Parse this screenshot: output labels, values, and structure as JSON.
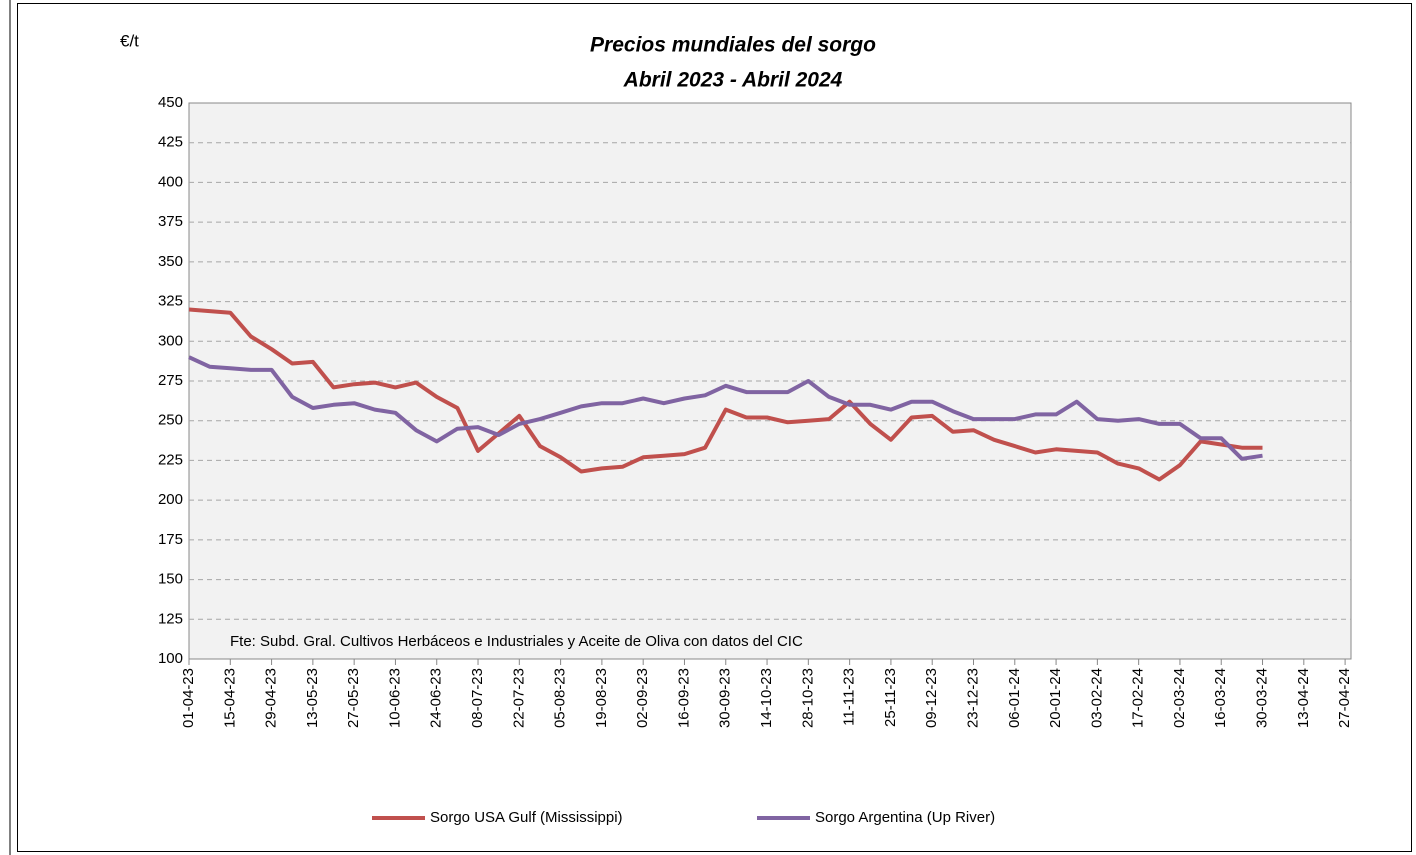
{
  "chart_data": {
    "type": "line",
    "title": "Precios mundiales del sorgo",
    "subtitle": "Abril 2023 - Abril 2024",
    "y_label": "€/t",
    "note": "Fte: Subd. Gral. Cultivos Herbáceos e Industriales y Aceite de Oliva con datos del CIC",
    "x": [
      "2023-04-01",
      "2023-04-08",
      "2023-04-15",
      "2023-04-22",
      "2023-04-29",
      "2023-05-06",
      "2023-05-13",
      "2023-05-20",
      "2023-05-27",
      "2023-06-03",
      "2023-06-10",
      "2023-06-17",
      "2023-06-24",
      "2023-07-01",
      "2023-07-08",
      "2023-07-15",
      "2023-07-22",
      "2023-07-29",
      "2023-08-05",
      "2023-08-12",
      "2023-08-19",
      "2023-08-26",
      "2023-09-02",
      "2023-09-09",
      "2023-09-16",
      "2023-09-23",
      "2023-09-30",
      "2023-10-07",
      "2023-10-14",
      "2023-10-21",
      "2023-10-28",
      "2023-11-04",
      "2023-11-11",
      "2023-11-18",
      "2023-11-25",
      "2023-12-02",
      "2023-12-09",
      "2023-12-16",
      "2023-12-23",
      "2023-12-30",
      "2024-01-06",
      "2024-01-13",
      "2024-01-20",
      "2024-01-27",
      "2024-02-03",
      "2024-02-10",
      "2024-02-17",
      "2024-02-24",
      "2024-03-02",
      "2024-03-09",
      "2024-03-16",
      "2024-03-23",
      "2024-03-30"
    ],
    "series": [
      {
        "name": "Sorgo USA Gulf (Mississippi)",
        "color": "#c0504d",
        "values": [
          320,
          319,
          318,
          303,
          295,
          286,
          287,
          271,
          273,
          274,
          271,
          274,
          265,
          258,
          231,
          242,
          253,
          234,
          227,
          218,
          220,
          221,
          227,
          228,
          229,
          233,
          257,
          252,
          252,
          249,
          250,
          251,
          262,
          248,
          238,
          252,
          253,
          243,
          244,
          238,
          234,
          230,
          232,
          231,
          230,
          223,
          220,
          213,
          222,
          237,
          235,
          233,
          233
        ]
      },
      {
        "name": "Sorgo Argentina (Up River)",
        "color": "#8064a2",
        "values": [
          290,
          284,
          283,
          282,
          282,
          265,
          258,
          260,
          261,
          257,
          255,
          244,
          237,
          245,
          246,
          241,
          248,
          251,
          255,
          259,
          261,
          261,
          264,
          261,
          264,
          266,
          272,
          268,
          268,
          268,
          275,
          265,
          260,
          260,
          257,
          262,
          262,
          256,
          251,
          251,
          251,
          254,
          254,
          262,
          251,
          250,
          251,
          248,
          248,
          239,
          239,
          226,
          228
        ]
      }
    ],
    "xlim": [
      "2023-04-01",
      "2024-04-29"
    ],
    "xticks": [
      {
        "value": "2023-04-01",
        "label": "01-04-23"
      },
      {
        "value": "2023-04-15",
        "label": "15-04-23"
      },
      {
        "value": "2023-04-29",
        "label": "29-04-23"
      },
      {
        "value": "2023-05-13",
        "label": "13-05-23"
      },
      {
        "value": "2023-05-27",
        "label": "27-05-23"
      },
      {
        "value": "2023-06-10",
        "label": "10-06-23"
      },
      {
        "value": "2023-06-24",
        "label": "24-06-23"
      },
      {
        "value": "2023-07-08",
        "label": "08-07-23"
      },
      {
        "value": "2023-07-22",
        "label": "22-07-23"
      },
      {
        "value": "2023-08-05",
        "label": "05-08-23"
      },
      {
        "value": "2023-08-19",
        "label": "19-08-23"
      },
      {
        "value": "2023-09-02",
        "label": "02-09-23"
      },
      {
        "value": "2023-09-16",
        "label": "16-09-23"
      },
      {
        "value": "2023-09-30",
        "label": "30-09-23"
      },
      {
        "value": "2023-10-14",
        "label": "14-10-23"
      },
      {
        "value": "2023-10-28",
        "label": "28-10-23"
      },
      {
        "value": "2023-11-11",
        "label": "11-11-23"
      },
      {
        "value": "2023-11-25",
        "label": "25-11-23"
      },
      {
        "value": "2023-12-09",
        "label": "09-12-23"
      },
      {
        "value": "2023-12-23",
        "label": "23-12-23"
      },
      {
        "value": "2024-01-06",
        "label": "06-01-24"
      },
      {
        "value": "2024-01-20",
        "label": "20-01-24"
      },
      {
        "value": "2024-02-03",
        "label": "03-02-24"
      },
      {
        "value": "2024-02-17",
        "label": "17-02-24"
      },
      {
        "value": "2024-03-02",
        "label": "02-03-24"
      },
      {
        "value": "2024-03-16",
        "label": "16-03-24"
      },
      {
        "value": "2024-03-30",
        "label": "30-03-24"
      },
      {
        "value": "2024-04-13",
        "label": "13-04-24"
      },
      {
        "value": "2024-04-27",
        "label": "27-04-24"
      }
    ],
    "ylim": [
      100,
      450
    ],
    "yticks": [
      100,
      125,
      150,
      175,
      200,
      225,
      250,
      275,
      300,
      325,
      350,
      375,
      400,
      425,
      450
    ],
    "grid": true,
    "legend": "bottom"
  }
}
